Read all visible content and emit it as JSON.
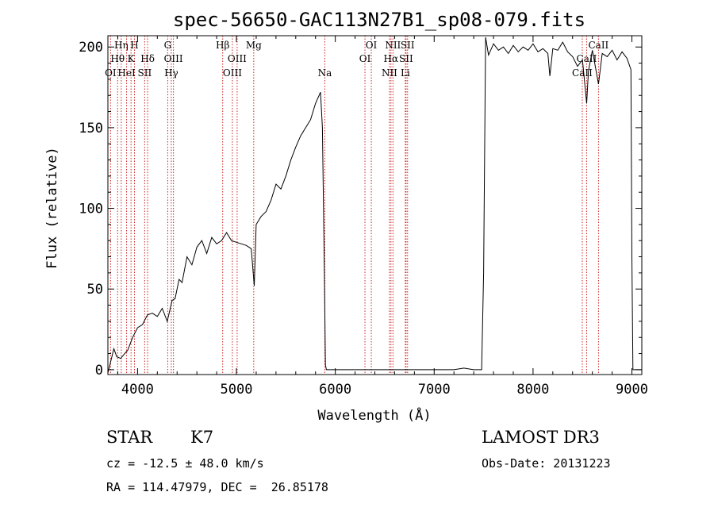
{
  "chart_data": {
    "type": "line",
    "title": "spec-56650-GAC113N27B1_sp08-079.fits",
    "xlabel": "Wavelength (Å)",
    "ylabel": "Flux (relative)",
    "xlim": [
      3700,
      9100
    ],
    "ylim": [
      -3,
      207
    ],
    "xticks": [
      4000,
      5000,
      6000,
      7000,
      8000,
      9000
    ],
    "xtick_labels": [
      "4000",
      "5000",
      "6000",
      "7000",
      "8000",
      "9000"
    ],
    "yticks": [
      0,
      50,
      100,
      150,
      200
    ],
    "ytick_labels": [
      "0",
      "50",
      "100",
      "150",
      "200"
    ],
    "series": [
      {
        "name": "flux",
        "x": [
          3700,
          3760,
          3790,
          3830,
          3870,
          3900,
          3950,
          4000,
          4050,
          4100,
          4150,
          4200,
          4250,
          4300,
          4350,
          4380,
          4420,
          4450,
          4500,
          4550,
          4600,
          4650,
          4700,
          4750,
          4800,
          4850,
          4900,
          4950,
          5000,
          5050,
          5100,
          5150,
          5180,
          5200,
          5250,
          5300,
          5350,
          5400,
          5450,
          5500,
          5550,
          5600,
          5650,
          5700,
          5750,
          5800,
          5850,
          5870,
          5890,
          5900,
          5910,
          5950,
          6100,
          6300,
          6500,
          6700,
          6900,
          7100,
          7200,
          7300,
          7400,
          7480,
          7500,
          7520,
          7550,
          7600,
          7650,
          7700,
          7750,
          7800,
          7850,
          7900,
          7950,
          8000,
          8050,
          8100,
          8150,
          8170,
          8200,
          8250,
          8300,
          8350,
          8400,
          8450,
          8500,
          8542,
          8560,
          8600,
          8662,
          8700,
          8750,
          8800,
          8850,
          8900,
          8950,
          8990,
          9000,
          9010,
          9100
        ],
        "y": [
          -2,
          13,
          8,
          7,
          10,
          12,
          20,
          26,
          28,
          34,
          35,
          33,
          38,
          30,
          43,
          44,
          56,
          54,
          70,
          65,
          76,
          80,
          72,
          82,
          78,
          80,
          85,
          80,
          79,
          78,
          77,
          75,
          52,
          90,
          95,
          98,
          105,
          115,
          112,
          120,
          130,
          138,
          145,
          150,
          155,
          165,
          172,
          150,
          60,
          3,
          0,
          0,
          0,
          0,
          0,
          0,
          0,
          0,
          0,
          1,
          0,
          0,
          60,
          206,
          195,
          202,
          198,
          200,
          196,
          201,
          197,
          200,
          198,
          202,
          197,
          199,
          196,
          182,
          199,
          198,
          203,
          197,
          194,
          188,
          192,
          165,
          185,
          198,
          177,
          196,
          194,
          198,
          192,
          197,
          193,
          186,
          70,
          0,
          0
        ]
      }
    ],
    "spectral_lines": [
      {
        "name": "OI",
        "x": 3727,
        "row": 3
      },
      {
        "name": "Hθ",
        "x": 3798,
        "row": 2
      },
      {
        "name": "Hη",
        "x": 3835,
        "row": 1
      },
      {
        "name": "HeI",
        "x": 3889,
        "row": 3
      },
      {
        "name": "K",
        "x": 3934,
        "row": 2
      },
      {
        "name": "H",
        "x": 3969,
        "row": 1
      },
      {
        "name": "SII",
        "x": 4072,
        "row": 3
      },
      {
        "name": "Hδ",
        "x": 4102,
        "row": 2
      },
      {
        "name": "G",
        "x": 4305,
        "row": 1
      },
      {
        "name": "Hγ",
        "x": 4341,
        "row": 3
      },
      {
        "name": "OIII",
        "x": 4363,
        "row": 2
      },
      {
        "name": "Hβ",
        "x": 4861,
        "row": 1
      },
      {
        "name": "OIII",
        "x": 4959,
        "row": 3
      },
      {
        "name": "OIII",
        "x": 5007,
        "row": 2
      },
      {
        "name": "Mg",
        "x": 5175,
        "row": 1
      },
      {
        "name": "Na",
        "x": 5894,
        "row": 3
      },
      {
        "name": "OI",
        "x": 6300,
        "row": 2
      },
      {
        "name": "OI",
        "x": 6364,
        "row": 1
      },
      {
        "name": "NII",
        "x": 6548,
        "row": 3
      },
      {
        "name": "Hα",
        "x": 6563,
        "row": 2
      },
      {
        "name": "NII",
        "x": 6583,
        "row": 1
      },
      {
        "name": "Li",
        "x": 6708,
        "row": 3
      },
      {
        "name": "SII",
        "x": 6716,
        "row": 2
      },
      {
        "name": "SII",
        "x": 6731,
        "row": 1
      },
      {
        "name": "CaII",
        "x": 8498,
        "row": 3
      },
      {
        "name": "CaII",
        "x": 8542,
        "row": 2
      },
      {
        "name": "CaII",
        "x": 8662,
        "row": 1
      }
    ],
    "line_color": "#cc2222",
    "spectrum_color": "#000000"
  },
  "info": {
    "class_label": "STAR",
    "subclass": "K7",
    "survey": "LAMOST DR3",
    "velocity": "cz = -12.5 ± 48.0 km/s",
    "obs_date": "Obs-Date: 20131223",
    "coords": "RA = 114.47979, DEC =  26.85178"
  }
}
